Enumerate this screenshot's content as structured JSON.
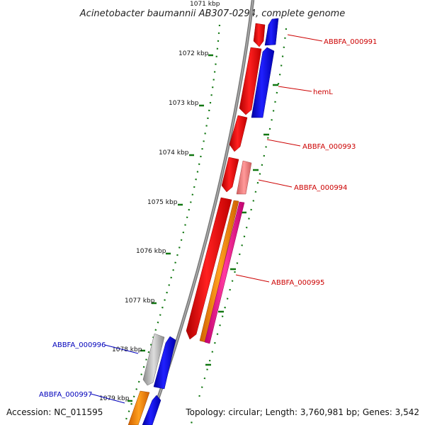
{
  "title": "Acinetobacter baumannii AB307-0294, complete genome",
  "footer": {
    "accession": "Accession: NC_011595",
    "topology": "Topology: circular; Length: 3,760,981 bp; Genes: 3,542"
  },
  "ticks": [
    "1071 kbp",
    "1072 kbp",
    "1073 kbp",
    "1074 kbp",
    "1075 kbp",
    "1076 kbp",
    "1077 kbp",
    "1078 kbp",
    "1079 kbp"
  ],
  "genes": [
    {
      "name": "ABBFA_000991",
      "color": "#cc0000"
    },
    {
      "name": "hemL",
      "color": "#cc0000"
    },
    {
      "name": "ABBFA_000993",
      "color": "#cc0000"
    },
    {
      "name": "ABBFA_000994",
      "color": "#cc0000"
    },
    {
      "name": "ABBFA_000995",
      "color": "#cc0000"
    },
    {
      "name": "ABBFA_000996",
      "color": "#0000bb"
    },
    {
      "name": "ABBFA_000997",
      "color": "#0000bb"
    }
  ],
  "colors": {
    "forward_strand": "#ee0000",
    "reverse_strand": "#0000ee",
    "pseudo": "#ee7777",
    "rna_orange": "#ff8800",
    "rna_magenta": "#ff1493",
    "other_gray": "#aaaaaa",
    "backbone": "#888888",
    "gc_skew": "#117711"
  }
}
